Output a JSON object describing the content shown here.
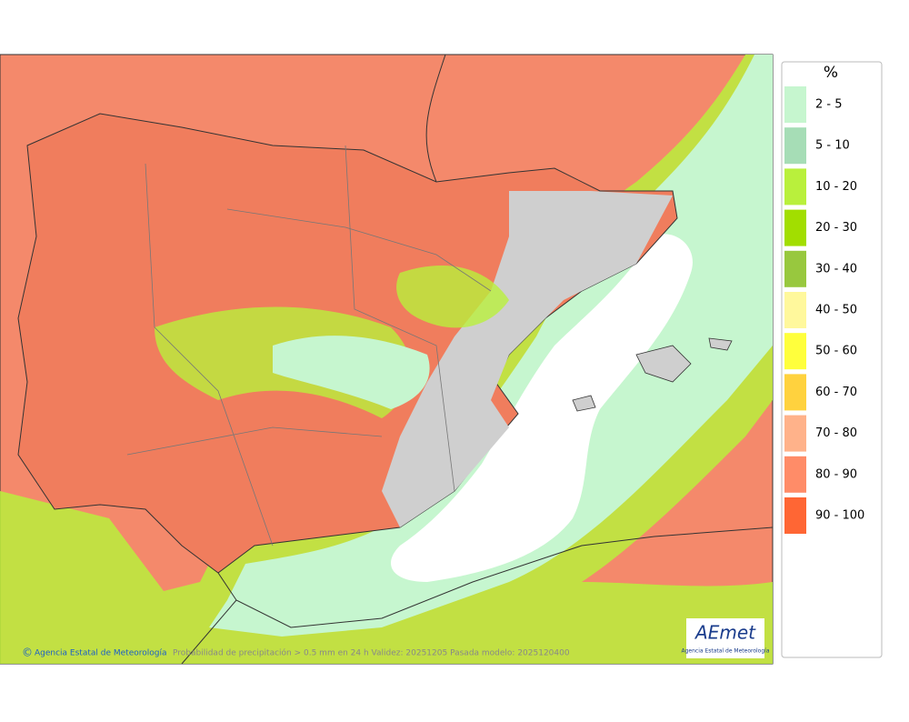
{
  "legend": {
    "title": "%",
    "items": [
      {
        "label": "2 - 5",
        "color": "#c6f6cf"
      },
      {
        "label": "5 - 10",
        "color": "#a6ddb6"
      },
      {
        "label": "10 - 20",
        "color": "#b9f03c"
      },
      {
        "label": "20 - 30",
        "color": "#a2de00"
      },
      {
        "label": "30 - 40",
        "color": "#98c83e"
      },
      {
        "label": "40 - 50",
        "color": "#fff89c"
      },
      {
        "label": "50 - 60",
        "color": "#ffff3c"
      },
      {
        "label": "60 - 70",
        "color": "#ffd23e"
      },
      {
        "label": "70 - 80",
        "color": "#ffb28a"
      },
      {
        "label": "80 - 90",
        "color": "#ff8c68"
      },
      {
        "label": "90 - 100",
        "color": "#ff6634"
      }
    ]
  },
  "footer": {
    "credit": "Agencia Estatal de Meteorología",
    "caption": "Probabilidad de precipitación > 0.5 mm en 24 h Validez: 20251205 Pasada modelo: 2025120400"
  },
  "logo": {
    "text": "AEmet",
    "subtitle": "Agencia Estatal de Meteorología"
  }
}
